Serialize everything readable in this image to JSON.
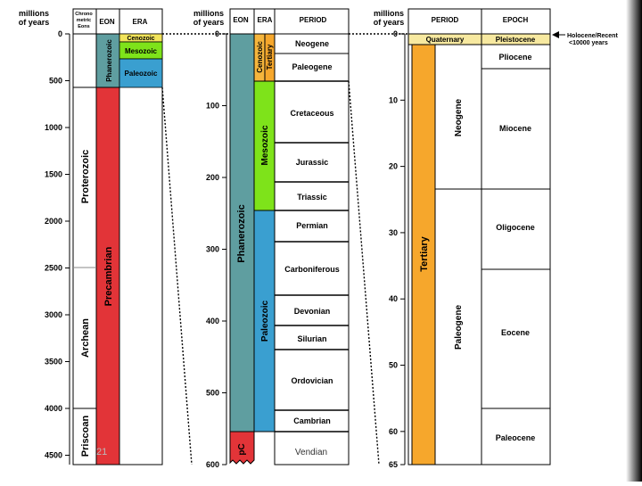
{
  "header": {
    "millions_of_years": [
      "millions",
      "of years"
    ],
    "chronometric_eons": [
      "Chrono",
      "metric",
      "Eons"
    ],
    "eon": "EON",
    "era": "ERA",
    "period": "PERIOD",
    "epoch": "EPOCH"
  },
  "colors": {
    "teal": "#5f9ea0",
    "red": "#e23438",
    "yellow": "#f2e45a",
    "green": "#7ee31a",
    "blue": "#3a9fd0",
    "orange": "#f6a72c",
    "cenozoic_orange": "#f5b53c",
    "quaternary": "#f7e9a0"
  },
  "panel1": {
    "ticks": [
      "0",
      "500",
      "1000",
      "1500",
      "2000",
      "2500",
      "3000",
      "3500",
      "4000",
      "4500"
    ],
    "eons": [
      "Priscoan",
      "Archean",
      "Proterozoic"
    ],
    "phanerozoic": "Phanerozoic",
    "precambrian": "Precambrian",
    "eras": [
      "Cenozoic",
      "Mesozoic",
      "Paleozoic"
    ]
  },
  "panel2": {
    "ticks": [
      "0",
      "100",
      "200",
      "300",
      "400",
      "500",
      "600"
    ],
    "eon_phanerozoic": "Phanerozoic",
    "eon_pc": "pC",
    "era_cenozoic": "Cenozoic",
    "era_mesozoic": "Mesozoic",
    "era_paleozoic": "Paleozoic",
    "tertiary": "Tertiary",
    "periods": [
      "Neogene",
      "Paleogene",
      "Cretaceous",
      "Jurassic",
      "Triassic",
      "Permian",
      "Carboniferous",
      "Devonian",
      "Silurian",
      "Ordovician",
      "Cambrian",
      "Vendian"
    ]
  },
  "panel3": {
    "ticks": [
      "0",
      "10",
      "20",
      "30",
      "40",
      "50",
      "60",
      "65"
    ],
    "quaternary": "Quaternary",
    "tertiary": "Tertiary",
    "neogene": "Neogene",
    "paleogene": "Paleogene",
    "epochs": [
      "Pleistocene",
      "Pliocene",
      "Miocene",
      "Oligocene",
      "Eocene",
      "Paleocene"
    ],
    "note": [
      "Holocene/Recent",
      "<10000 years"
    ]
  },
  "overlay": {
    "left": "21",
    "right": "Vendian"
  }
}
